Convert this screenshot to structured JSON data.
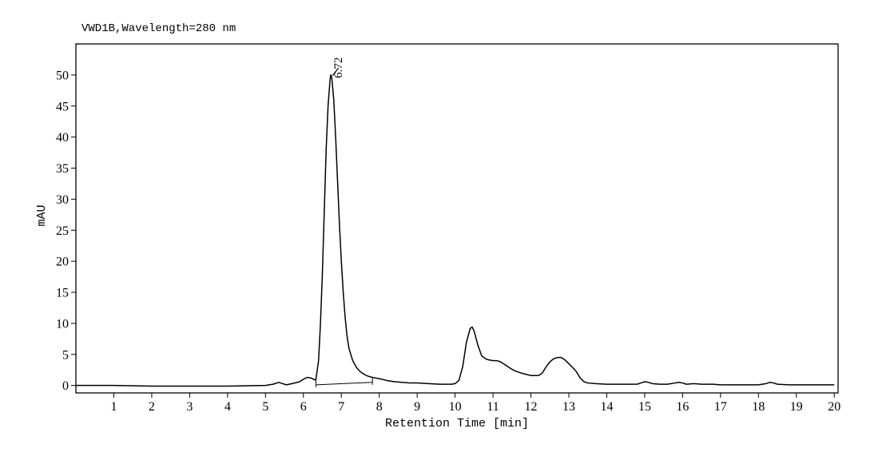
{
  "chart_data": {
    "type": "line",
    "title": "VWD1B,Wavelength=280 nm",
    "xlabel": "Retention Time [min]",
    "ylabel": "mAU",
    "xlim": [
      0,
      20.1
    ],
    "ylim": [
      -1.2,
      55
    ],
    "x_ticks": [
      1,
      2,
      3,
      4,
      5,
      6,
      7,
      8,
      9,
      10,
      11,
      12,
      13,
      14,
      15,
      16,
      17,
      18,
      19,
      20
    ],
    "y_ticks": [
      0,
      5,
      10,
      15,
      20,
      25,
      30,
      35,
      40,
      45,
      50
    ],
    "grid": false,
    "annotations": [
      {
        "x": 6.72,
        "y": 50,
        "text": "6.72"
      }
    ],
    "integration_baseline": {
      "x": [
        6.33,
        7.82
      ],
      "y": [
        0.1,
        0.5
      ]
    },
    "integration_ticks": [
      6.33,
      7.82
    ],
    "series": [
      {
        "x": [
          0,
          1,
          2,
          3,
          4,
          5,
          5.2,
          5.35,
          5.45,
          5.55,
          5.7,
          5.9,
          6.0,
          6.1,
          6.2,
          6.3,
          6.33,
          6.4,
          6.45,
          6.5,
          6.55,
          6.6,
          6.65,
          6.7,
          6.72,
          6.75,
          6.8,
          6.85,
          6.9,
          6.95,
          7.0,
          7.05,
          7.1,
          7.15,
          7.2,
          7.3,
          7.4,
          7.5,
          7.6,
          7.7,
          7.82,
          8.0,
          8.2,
          8.4,
          8.6,
          8.8,
          9.0,
          9.3,
          9.6,
          9.9,
          10.0,
          10.1,
          10.2,
          10.3,
          10.4,
          10.45,
          10.5,
          10.6,
          10.7,
          10.8,
          10.9,
          11.0,
          11.1,
          11.2,
          11.3,
          11.4,
          11.5,
          11.6,
          11.8,
          12.0,
          12.2,
          12.3,
          12.4,
          12.5,
          12.6,
          12.7,
          12.8,
          12.9,
          13.0,
          13.1,
          13.2,
          13.3,
          13.4,
          13.5,
          13.7,
          14.0,
          14.4,
          14.8,
          14.9,
          15.0,
          15.1,
          15.2,
          15.4,
          15.6,
          15.8,
          15.9,
          16.0,
          16.1,
          16.3,
          16.5,
          16.8,
          17.0,
          17.3,
          17.6,
          18.0,
          18.2,
          18.3,
          18.4,
          18.5,
          18.8,
          19.2,
          19.6,
          20.0
        ],
        "y": [
          0,
          0,
          -0.1,
          -0.1,
          -0.1,
          0,
          0.2,
          0.5,
          0.3,
          0.1,
          0.3,
          0.6,
          1.0,
          1.3,
          1.2,
          0.9,
          1.0,
          4.0,
          10.0,
          18.0,
          28.0,
          38.0,
          45.0,
          49.0,
          50.0,
          49.5,
          46.0,
          40.0,
          33.0,
          26.0,
          20.0,
          15.0,
          11.0,
          8.0,
          6.0,
          4.0,
          2.9,
          2.2,
          1.8,
          1.5,
          1.3,
          1.1,
          0.8,
          0.6,
          0.5,
          0.4,
          0.4,
          0.3,
          0.2,
          0.2,
          0.3,
          0.8,
          3.0,
          7.0,
          9.2,
          9.4,
          8.8,
          6.5,
          4.8,
          4.3,
          4.1,
          4.0,
          4.0,
          3.8,
          3.4,
          3.0,
          2.6,
          2.3,
          1.9,
          1.6,
          1.6,
          2.0,
          3.0,
          3.8,
          4.3,
          4.5,
          4.5,
          4.1,
          3.5,
          2.9,
          2.2,
          1.2,
          0.6,
          0.4,
          0.3,
          0.2,
          0.2,
          0.2,
          0.4,
          0.6,
          0.5,
          0.3,
          0.2,
          0.2,
          0.4,
          0.5,
          0.4,
          0.2,
          0.3,
          0.2,
          0.2,
          0.1,
          0.1,
          0.1,
          0.1,
          0.3,
          0.5,
          0.4,
          0.2,
          0.1,
          0.1,
          0.1,
          0.1
        ]
      }
    ]
  }
}
